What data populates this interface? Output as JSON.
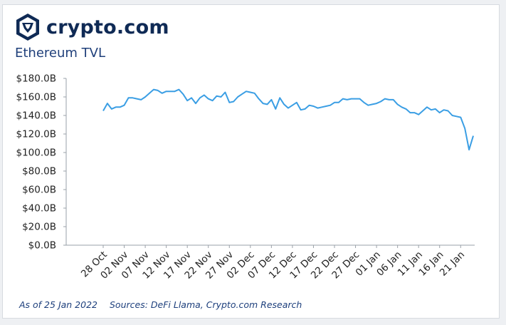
{
  "brand": {
    "name": "crypto.com",
    "logo_icon": "crypto-lion-shield-icon",
    "color": "#0f2a55"
  },
  "title": "Ethereum TVL",
  "footer": {
    "as_of": "As of 25 Jan 2022",
    "sources": "Sources: DeFi Llama, Crypto.com Research"
  },
  "chart_data": {
    "type": "line",
    "title": "Ethereum TVL",
    "xlabel": "",
    "ylabel": "",
    "ylim": [
      0,
      180
    ],
    "y_ticks": [
      "$0.0B",
      "$20.0B",
      "$40.0B",
      "$60.0B",
      "$80.0B",
      "$100.0B",
      "$120.0B",
      "$140.0B",
      "$160.0B",
      "$180.0B"
    ],
    "x_tick_labels": [
      "28 Oct",
      "02 Nov",
      "07 Nov",
      "12 Nov",
      "17 Nov",
      "22 Nov",
      "27 Nov",
      "02 Dec",
      "07 Dec",
      "12 Dec",
      "17 Dec",
      "22 Dec",
      "27 Dec",
      "01 Jan",
      "06 Jan",
      "11 Jan",
      "16 Jan",
      "21 Jan"
    ],
    "x_start": "28 Oct 2021",
    "x_end": "25 Jan 2022",
    "grid": false,
    "line_color": "#3a9ee4",
    "series": [
      {
        "name": "",
        "values": [
          145,
          153,
          147,
          149,
          149,
          151,
          159,
          159,
          158,
          157,
          160,
          164,
          168,
          167,
          164,
          166,
          166,
          166,
          168,
          163,
          156,
          159,
          153,
          159,
          162,
          158,
          156,
          161,
          160,
          165,
          154,
          155,
          160,
          163,
          166,
          165,
          164,
          158,
          153,
          152,
          157,
          147,
          159,
          152,
          148,
          151,
          154,
          146,
          147,
          151,
          150,
          148,
          149,
          150,
          151,
          154,
          154,
          158,
          157,
          158,
          158,
          158,
          154,
          151,
          152,
          153,
          155,
          158,
          157,
          157,
          152,
          149,
          147,
          143,
          143,
          141,
          145,
          149,
          146,
          147,
          143,
          146,
          145,
          140,
          139,
          138,
          126,
          103,
          118
        ]
      }
    ]
  }
}
